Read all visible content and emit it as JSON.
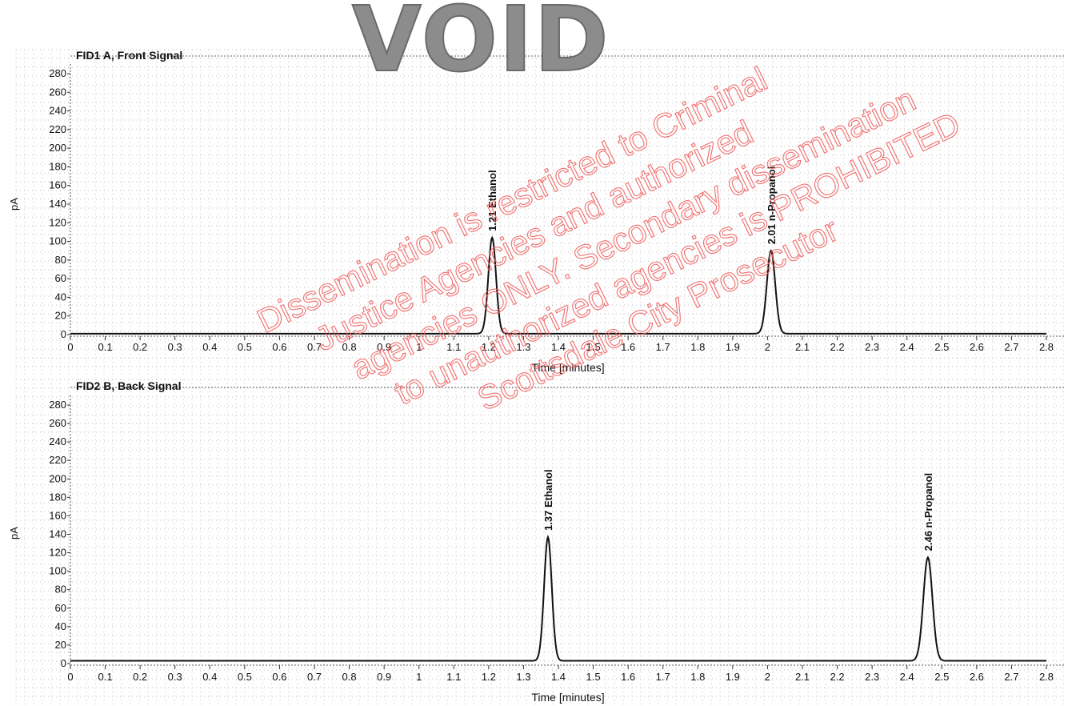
{
  "chart_data": [
    {
      "type": "line",
      "title": "FID1 A, Front Signal",
      "xlabel": "Time [minutes]",
      "ylabel": "pA",
      "xlim": [
        0,
        2.8
      ],
      "ylim": [
        0,
        285
      ],
      "xticks": [
        0,
        0.1,
        0.2,
        0.3,
        0.4,
        0.5,
        0.6,
        0.7,
        0.8,
        0.9,
        1,
        1.1,
        1.2,
        1.3,
        1.4,
        1.5,
        1.6,
        1.7,
        1.8,
        1.9,
        2,
        2.1,
        2.2,
        2.3,
        2.4,
        2.5,
        2.6,
        2.7,
        2.8
      ],
      "yticks": [
        0,
        20,
        40,
        60,
        80,
        100,
        120,
        140,
        160,
        180,
        200,
        220,
        240,
        260,
        280
      ],
      "grid": true,
      "baseline": 1,
      "peaks": [
        {
          "time": 1.21,
          "height": 103,
          "width": 0.011,
          "label": "1.21  Ethanol"
        },
        {
          "time": 2.01,
          "height": 89,
          "width": 0.012,
          "label": "2.01  n-Propanol"
        }
      ]
    },
    {
      "type": "line",
      "title": "FID2 B, Back Signal",
      "xlabel": "Time [minutes]",
      "ylabel": "pA",
      "xlim": [
        0,
        2.8
      ],
      "ylim": [
        0,
        285
      ],
      "xticks": [
        0,
        0.1,
        0.2,
        0.3,
        0.4,
        0.5,
        0.6,
        0.7,
        0.8,
        0.9,
        1,
        1.1,
        1.2,
        1.3,
        1.4,
        1.5,
        1.6,
        1.7,
        1.8,
        1.9,
        2,
        2.1,
        2.2,
        2.3,
        2.4,
        2.5,
        2.6,
        2.7,
        2.8
      ],
      "yticks": [
        0,
        20,
        40,
        60,
        80,
        100,
        120,
        140,
        160,
        180,
        200,
        220,
        240,
        260,
        280
      ],
      "grid": true,
      "baseline": 3,
      "peaks": [
        {
          "time": 1.37,
          "height": 134,
          "width": 0.011,
          "label": "1.37  Ethanol"
        },
        {
          "time": 2.46,
          "height": 112,
          "width": 0.013,
          "label": "2.46  n-Propanol"
        }
      ]
    }
  ],
  "watermark": {
    "stamp": "VOID",
    "lines": [
      "Dissemination is restricted to Criminal",
      "Justice Agencies and authorized",
      "agencies ONLY. Secondary dissemination",
      "to unauthorized agencies is PROHIBITED",
      "Scottsdale City Prosecutor"
    ],
    "color": "#f06060"
  }
}
